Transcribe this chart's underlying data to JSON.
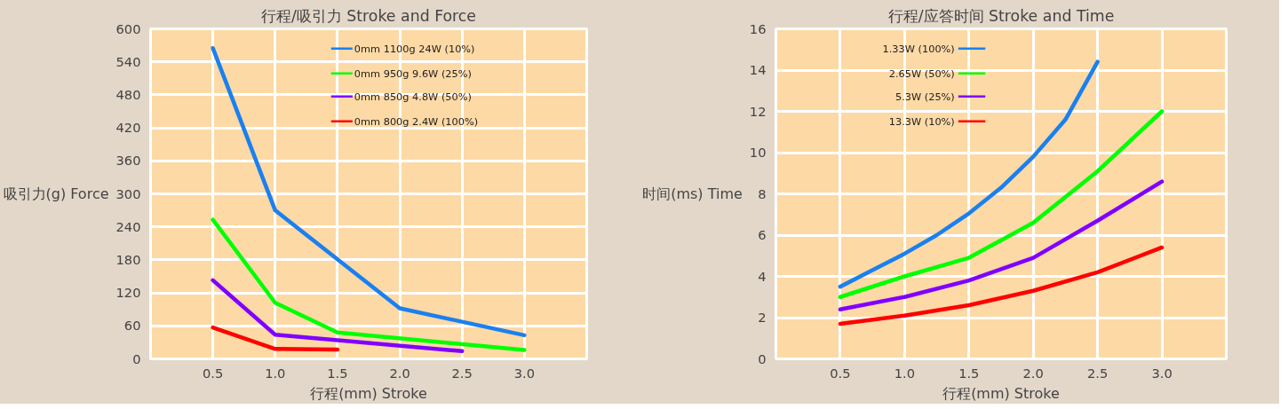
{
  "chart_data": [
    {
      "type": "line",
      "title": "行程/吸引力 Stroke and Force",
      "xlabel": "行程(mm) Stroke",
      "ylabel": "吸引力(g) Force",
      "xlim": [
        0,
        3.5
      ],
      "xticks": [
        0.5,
        {
          "value": 1,
          "label": "1.0"
        },
        1.5,
        {
          "value": 2,
          "label": "2.0"
        },
        2.5,
        {
          "value": 3,
          "label": "3.0"
        }
      ],
      "ylim": [
        0,
        600
      ],
      "yticks": [
        0,
        60,
        120,
        180,
        240,
        300,
        360,
        420,
        480,
        540,
        600
      ],
      "grid": true,
      "legend": "top right",
      "series": [
        {
          "name": "0mm 1100g 24W (10%)",
          "color": "#1a80f0",
          "x": [
            0.5,
            1.0,
            2.0,
            3.0
          ],
          "values": [
            565,
            270,
            92,
            43
          ]
        },
        {
          "name": "0mm 950g 9.6W (25%)",
          "color": "#00ff00",
          "x": [
            0.5,
            1.0,
            1.5,
            3.0
          ],
          "values": [
            253,
            102,
            48,
            16
          ]
        },
        {
          "name": "0mm 850g 4.8W (50%)",
          "color": "#8000ff",
          "x": [
            0.5,
            1.0,
            2.5
          ],
          "values": [
            143,
            44,
            14
          ]
        },
        {
          "name": "0mm 800g 2.4W (100%)",
          "color": "#ff0000",
          "x": [
            0.5,
            1.0,
            1.5
          ],
          "values": [
            57,
            18,
            17
          ]
        }
      ]
    },
    {
      "type": "line",
      "title": "行程/应答时间 Stroke and Time",
      "xlabel": "行程(mm) Stroke",
      "ylabel": "时间(ms) Time",
      "xlim": [
        0,
        3.5
      ],
      "xticks": [
        0.5,
        {
          "value": 1,
          "label": "1.0"
        },
        1.5,
        {
          "value": 2,
          "label": "2.0"
        },
        2.5,
        {
          "value": 3,
          "label": "3.0"
        }
      ],
      "ylim": [
        0,
        16
      ],
      "yticks": [
        0,
        2,
        4,
        6,
        8,
        10,
        12,
        14,
        16
      ],
      "grid": true,
      "legend": "top left",
      "series": [
        {
          "name": "1.33W (100%)",
          "color": "#1a80f0",
          "x": [
            0.5,
            0.75,
            1.0,
            1.25,
            1.5,
            1.75,
            2.0,
            2.25,
            2.5
          ],
          "values": [
            3.5,
            4.3,
            5.1,
            6.0,
            7.05,
            8.3,
            9.8,
            11.6,
            14.4
          ]
        },
        {
          "name": "2.65W (50%)",
          "color": "#00ff00",
          "x": [
            0.5,
            1.0,
            1.5,
            2.0,
            2.5,
            3.0
          ],
          "values": [
            3.0,
            4.0,
            4.9,
            6.6,
            9.1,
            12.0
          ]
        },
        {
          "name": "5.3W (25%)",
          "color": "#8000ff",
          "x": [
            0.5,
            1.0,
            1.5,
            2.0,
            2.5,
            3.0
          ],
          "values": [
            2.4,
            3.0,
            3.8,
            4.9,
            6.7,
            8.6
          ]
        },
        {
          "name": "13.3W (10%)",
          "color": "#ff0000",
          "x": [
            0.5,
            1.0,
            1.5,
            2.0,
            2.5,
            3.0
          ],
          "values": [
            1.7,
            2.1,
            2.6,
            3.3,
            4.2,
            5.4
          ]
        }
      ]
    }
  ]
}
